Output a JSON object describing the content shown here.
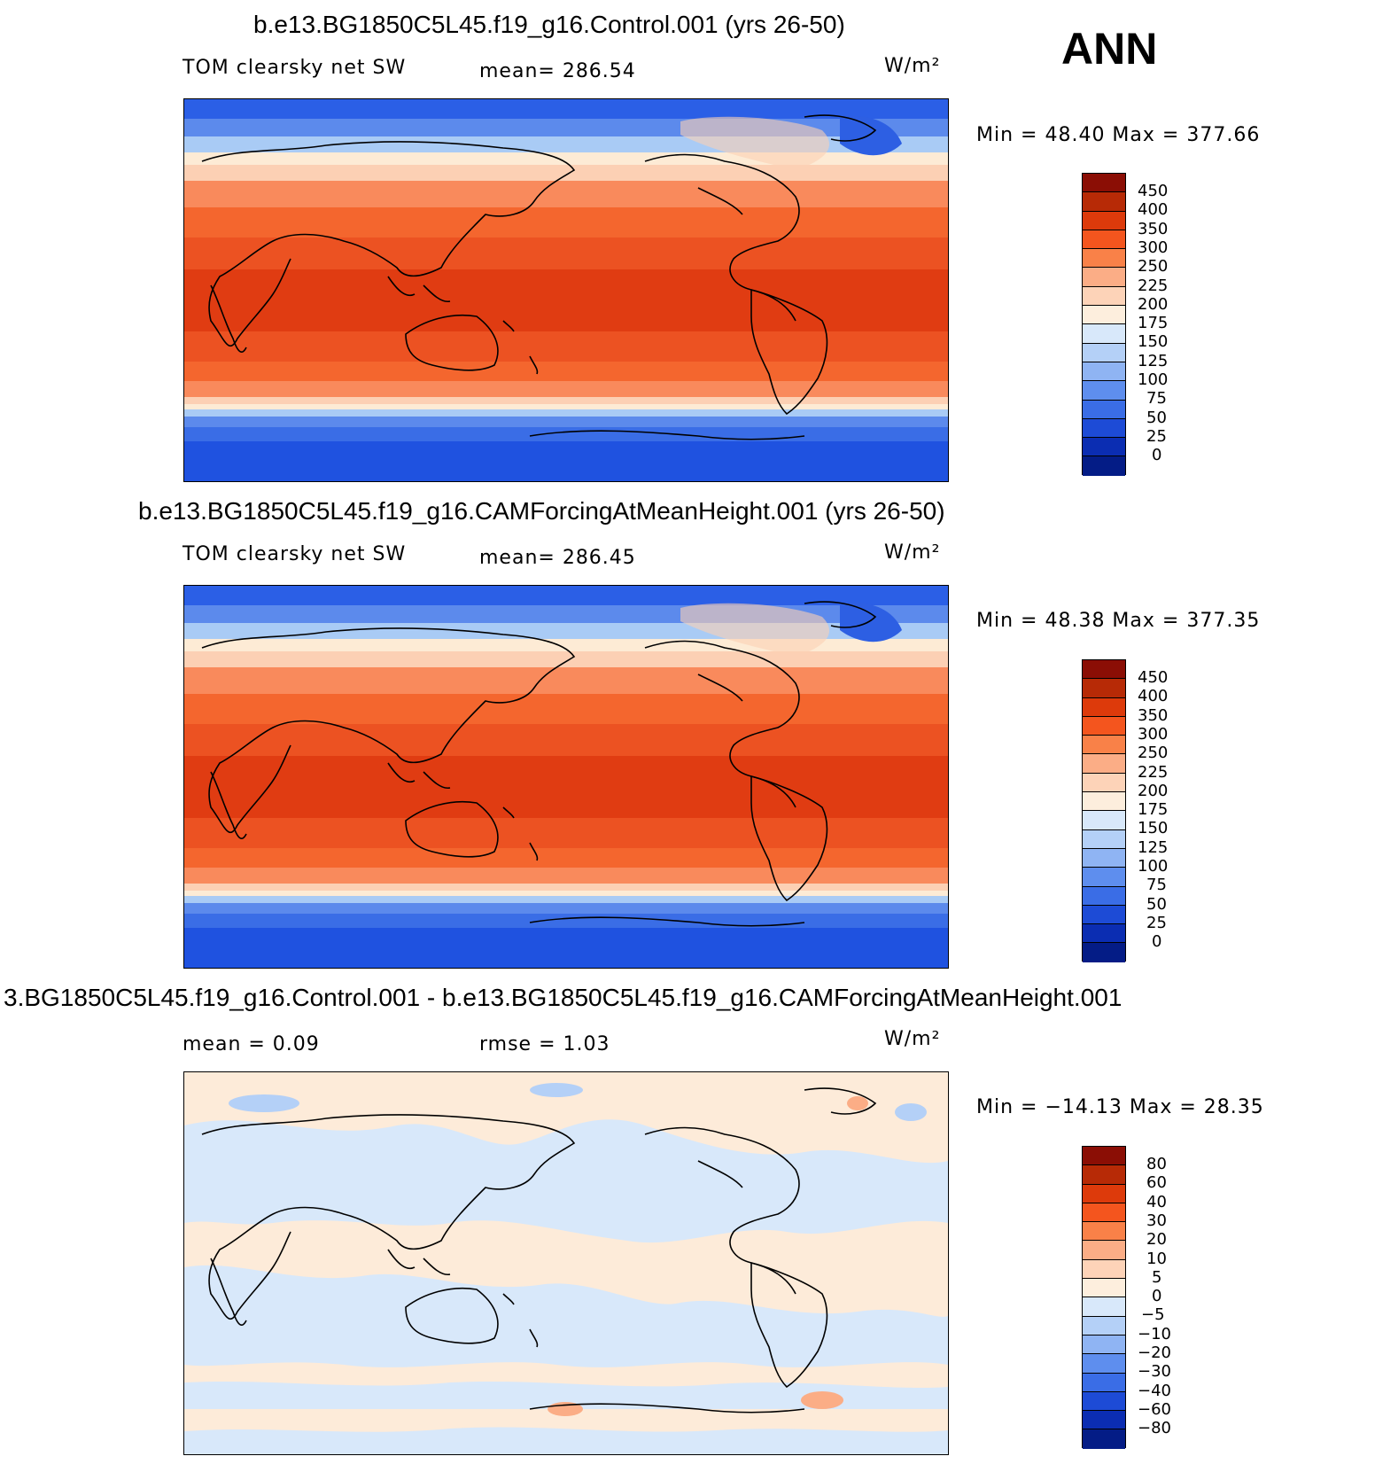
{
  "season": "ANN",
  "units": "W/m²",
  "panels": [
    {
      "title": "b.e13.BG1850C5L45.f19_g16.Control.001 (yrs 26-50)",
      "left_label": "TOM clearsky net SW",
      "mid_label": "mean= 286.54",
      "minmax": "Min =   48.40 Max = 377.66",
      "levels": [
        "450",
        "400",
        "350",
        "300",
        "250",
        "225",
        "200",
        "175",
        "150",
        "125",
        "100",
        "75",
        "50",
        "25",
        "0"
      ]
    },
    {
      "title": "b.e13.BG1850C5L45.f19_g16.CAMForcingAtMeanHeight.001 (yrs 26-50)",
      "left_label": "TOM clearsky net SW",
      "mid_label": "mean= 286.45",
      "minmax": "Min =   48.38 Max = 377.35",
      "levels": [
        "450",
        "400",
        "350",
        "300",
        "250",
        "225",
        "200",
        "175",
        "150",
        "125",
        "100",
        "75",
        "50",
        "25",
        "0"
      ]
    },
    {
      "title": "3.BG1850C5L45.f19_g16.Control.001 - b.e13.BG1850C5L45.f19_g16.CAMForcingAtMeanHeight.001",
      "left_label": "mean =    0.09",
      "mid_label": "rmse =    1.03",
      "minmax": "Min = −14.13 Max =   28.35",
      "levels": [
        "80",
        "60",
        "40",
        "30",
        "20",
        "10",
        "5",
        "0",
        "−5",
        "−10",
        "−20",
        "−30",
        "−40",
        "−60",
        "−80"
      ]
    }
  ],
  "colors": {
    "field_scale": [
      "#fdebd5",
      "#fcd0b4",
      "#fbac86",
      "#f97b4f",
      "#f4552a",
      "#e03c12",
      "#bd2a0a",
      "#8b0000",
      "#d4e6f9",
      "#a9cbf5",
      "#7ba8ef",
      "#4f82ea",
      "#2d5fe3",
      "#1c43cf",
      "#0e2aa8",
      "#041a7c"
    ],
    "cbar_abs": [
      "#8b0e05",
      "#b72a06",
      "#dd3a0b",
      "#f4551e",
      "#f98148",
      "#fbad86",
      "#fdd3b8",
      "#fdeedd",
      "#d8e8fa",
      "#b4d0f7",
      "#8fb4f3",
      "#5e8eee",
      "#3a6de6",
      "#1d4bd6",
      "#0b2db2",
      "#041c86"
    ],
    "cbar_diff": [
      "#8b0e05",
      "#b72a06",
      "#dd3a0b",
      "#f4551e",
      "#f98148",
      "#fbad86",
      "#fdd3b8",
      "#fdeedd",
      "#d8e8fa",
      "#b4d0f7",
      "#8fb4f3",
      "#5e8eee",
      "#3a6de6",
      "#1d4bd6",
      "#0b2db2",
      "#041c86"
    ]
  }
}
